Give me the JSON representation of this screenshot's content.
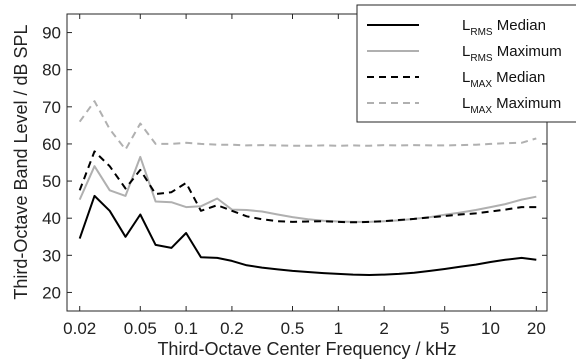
{
  "chart_data": {
    "type": "line",
    "title": "",
    "xlabel": "Third-Octave Center Frequency / kHz",
    "ylabel": "Third-Octave Band Level / dB SPL",
    "x_scale": "log",
    "xlim": [
      0.0165,
      23.5
    ],
    "ylim": [
      15,
      95
    ],
    "grid": false,
    "legend_position": "top-right",
    "x_ticks": [
      0.02,
      0.05,
      0.1,
      0.2,
      0.5,
      1,
      2,
      5,
      10,
      20
    ],
    "x_tick_labels": [
      "0.02",
      "0.05",
      "0.1",
      "0.2",
      "0.5",
      "1",
      "2",
      "5",
      "10",
      "20"
    ],
    "y_ticks": [
      20,
      30,
      40,
      50,
      60,
      70,
      80,
      90
    ],
    "y_tick_labels": [
      "20",
      "30",
      "40",
      "50",
      "60",
      "70",
      "80",
      "90"
    ],
    "x": [
      0.02,
      0.025,
      0.0315,
      0.04,
      0.05,
      0.063,
      0.08,
      0.1,
      0.125,
      0.16,
      0.2,
      0.25,
      0.315,
      0.4,
      0.5,
      0.63,
      0.8,
      1,
      1.25,
      1.6,
      2,
      2.5,
      3.15,
      4,
      5,
      6.3,
      8,
      10,
      12.5,
      16,
      20
    ],
    "series": [
      {
        "name": "L_RMS Median",
        "legend_main": "L",
        "legend_sub": "RMS",
        "legend_rest": " Median",
        "color": "#000000",
        "dash": "solid",
        "values": [
          34.5,
          46,
          42,
          35,
          41,
          32.8,
          32,
          36,
          29.5,
          29.3,
          28.5,
          27.3,
          26.7,
          26.2,
          25.8,
          25.5,
          25.2,
          25,
          24.8,
          24.7,
          24.8,
          25,
          25.3,
          25.8,
          26.3,
          26.9,
          27.5,
          28.2,
          28.8,
          29.3,
          28.8
        ]
      },
      {
        "name": "L_RMS Maximum",
        "legend_main": "L",
        "legend_sub": "RMS",
        "legend_rest": " Maximum",
        "color": "#b0b0b0",
        "dash": "solid",
        "values": [
          45,
          54,
          47.5,
          46,
          56.5,
          44.5,
          44.3,
          43,
          43.2,
          45.3,
          42.3,
          42.2,
          41.8,
          41,
          40.3,
          39.7,
          39.3,
          39.1,
          39,
          39,
          39.2,
          39.4,
          39.8,
          40.3,
          40.9,
          41.5,
          42.2,
          43,
          43.8,
          45,
          45.8
        ]
      },
      {
        "name": "L_MAX Median",
        "legend_main": "L",
        "legend_sub": "MAX",
        "legend_rest": " Median",
        "color": "#000000",
        "dash": "dashed",
        "values": [
          47.5,
          58,
          54,
          48,
          53,
          46.5,
          47,
          49.5,
          42,
          43.5,
          42,
          40.5,
          39.7,
          39.2,
          39,
          39.1,
          39.2,
          39,
          38.9,
          39,
          39.2,
          39.5,
          39.8,
          40.2,
          40.6,
          41,
          41.3,
          41.8,
          42.3,
          43,
          43
        ]
      },
      {
        "name": "L_MAX Maximum",
        "legend_main": "L",
        "legend_sub": "MAX",
        "legend_rest": " Maximum",
        "color": "#b0b0b0",
        "dash": "dashed",
        "values": [
          66,
          71.5,
          64,
          58.5,
          65.5,
          60,
          60,
          60.3,
          60,
          59.8,
          59.8,
          59.6,
          59.7,
          59.6,
          59.5,
          59.5,
          59.6,
          59.5,
          59.6,
          59.5,
          59.7,
          59.6,
          59.7,
          59.6,
          59.6,
          59.7,
          59.8,
          60,
          60.2,
          60.3,
          61.5
        ]
      }
    ]
  }
}
